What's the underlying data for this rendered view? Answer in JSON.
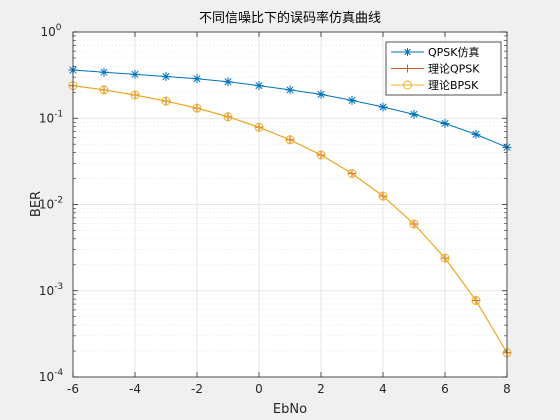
{
  "chart_data": {
    "type": "line",
    "title": "不同信噪比下的误码率仿真曲线",
    "xlabel": "EbNo",
    "ylabel": "BER",
    "x": [
      -6,
      -5,
      -4,
      -3,
      -2,
      -1,
      0,
      1,
      2,
      3,
      4,
      5,
      6,
      7,
      8
    ],
    "xlim": [
      -6,
      8
    ],
    "ylim": [
      0.0001,
      1
    ],
    "yscale": "log",
    "x_ticks": [
      "-6",
      "-4",
      "-2",
      "0",
      "2",
      "4",
      "6",
      "8"
    ],
    "y_ticks": [
      {
        "base": "10",
        "exp": "0"
      },
      {
        "base": "10",
        "exp": "-1"
      },
      {
        "base": "10",
        "exp": "-2"
      },
      {
        "base": "10",
        "exp": "-3"
      },
      {
        "base": "10",
        "exp": "-4"
      }
    ],
    "grid": true,
    "legend_position": "top-right",
    "series": [
      {
        "name": "QPSK仿真",
        "color": "#0072bd",
        "marker": "asterisk",
        "values": [
          0.362,
          0.342,
          0.323,
          0.305,
          0.287,
          0.265,
          0.239,
          0.213,
          0.189,
          0.161,
          0.135,
          0.111,
          0.087,
          0.065,
          0.046
        ]
      },
      {
        "name": "理论QPSK",
        "color": "#d95319",
        "marker": "plus",
        "values": [
          0.239,
          0.213,
          0.186,
          0.158,
          0.131,
          0.104,
          0.0786,
          0.0563,
          0.0375,
          0.0229,
          0.0125,
          0.00595,
          0.00239,
          0.00077,
          0.000191
        ]
      },
      {
        "name": "理论BPSK",
        "color": "#edb120",
        "marker": "circle",
        "values": [
          0.239,
          0.213,
          0.186,
          0.158,
          0.131,
          0.104,
          0.0786,
          0.0563,
          0.0375,
          0.0229,
          0.0125,
          0.00595,
          0.00239,
          0.00077,
          0.000191
        ]
      }
    ]
  }
}
